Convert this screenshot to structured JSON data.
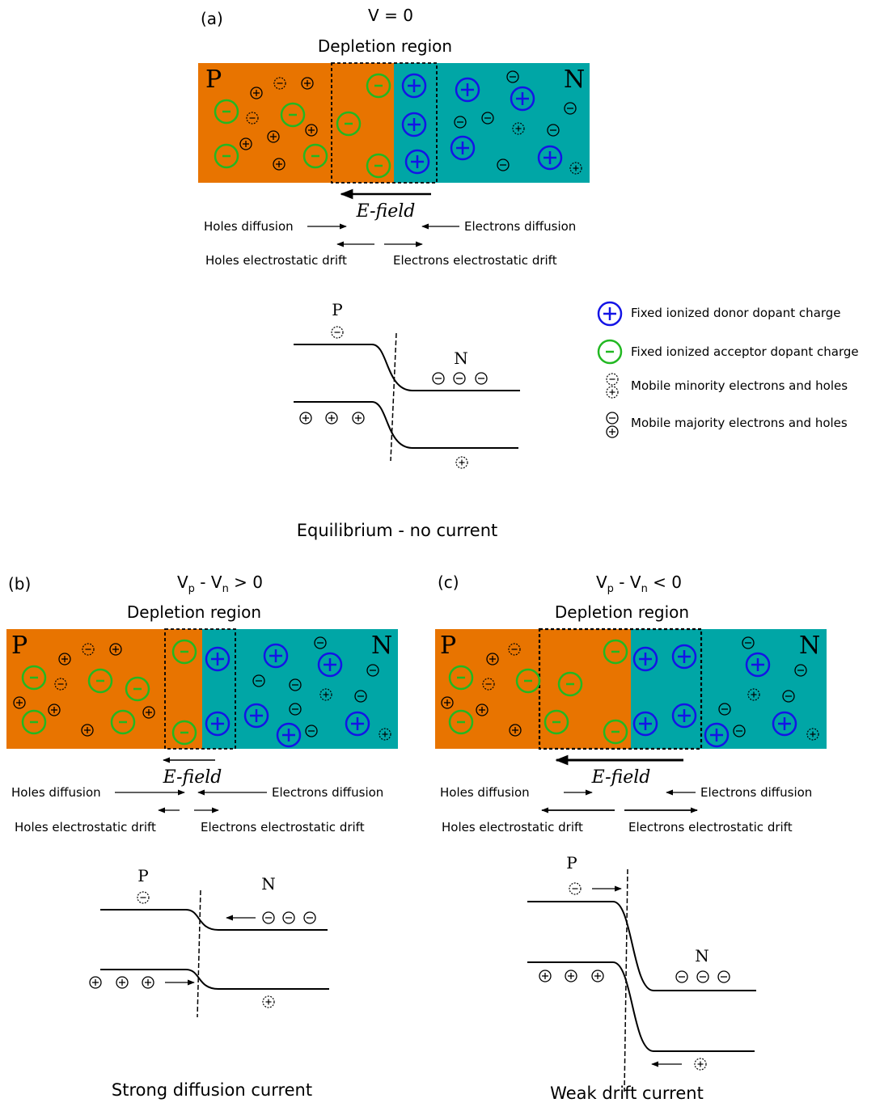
{
  "colors": {
    "p_region": "#e87400",
    "n_region": "#00a6a6",
    "donor": "#1414e6",
    "acceptor": "#22b822",
    "ink": "#000000"
  },
  "panel_a": {
    "tag": "(a)",
    "voltage": "V = 0",
    "depletion_label": "Depletion region",
    "p_letter": "P",
    "n_letter": "N",
    "efield": "E-field",
    "holes_diffusion": "Holes diffusion",
    "electrons_diffusion": "Electrons diffusion",
    "holes_drift": "Holes electrostatic drift",
    "electrons_drift": "Electrons electrostatic drift",
    "band_p": "P",
    "band_n": "N",
    "caption": "Equilibrium - no current"
  },
  "legend": {
    "donor": "Fixed ionized donor dopant charge",
    "acceptor": "Fixed ionized acceptor dopant charge",
    "minority": "Mobile minority electrons and holes",
    "majority": "Mobile majority electrons and holes"
  },
  "panel_b": {
    "tag": "(b)",
    "v_main": "V",
    "v_sub1": "p",
    "v_mid": " - V",
    "v_sub2": "n",
    "v_rel": " > 0",
    "depletion_label": "Depletion region",
    "p_letter": "P",
    "n_letter": "N",
    "efield": "E-field",
    "holes_diffusion": "Holes diffusion",
    "electrons_diffusion": "Electrons diffusion",
    "holes_drift": "Holes electrostatic drift",
    "electrons_drift": "Electrons electrostatic drift",
    "band_p": "P",
    "band_n": "N",
    "caption": "Strong diffusion current"
  },
  "panel_c": {
    "tag": "(c)",
    "v_main": "V",
    "v_sub1": "p",
    "v_mid": " - V",
    "v_sub2": "n",
    "v_rel": " < 0",
    "depletion_label": "Depletion region",
    "p_letter": "P",
    "n_letter": "N",
    "efield": "E-field",
    "holes_diffusion": "Holes diffusion",
    "electrons_diffusion": "Electrons diffusion",
    "holes_drift": "Holes electrostatic drift",
    "electrons_drift": "Electrons electrostatic drift",
    "band_p": "P",
    "band_n": "N",
    "caption": "Weak drift current"
  }
}
